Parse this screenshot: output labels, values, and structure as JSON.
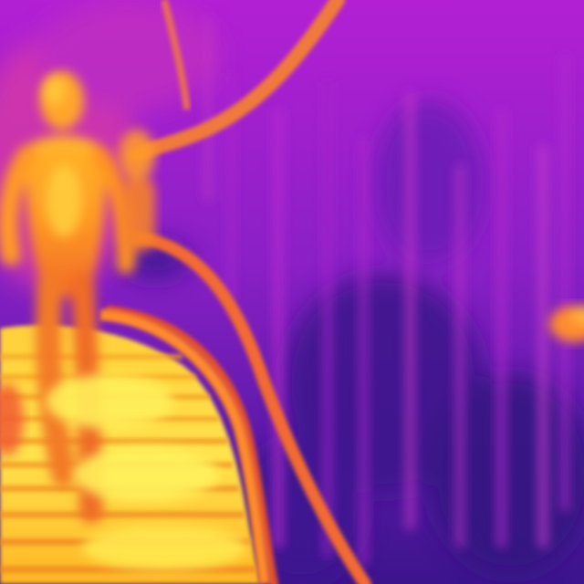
{
  "image": {
    "kind": "thermal-infrared-photo",
    "palette": "ironbow",
    "scene": "person-standing-on-suspension-footbridge-among-trees",
    "colors": {
      "hot": "#fff25a",
      "warm": "#ffb021",
      "mid": "#f0602e",
      "cool": "#b21ed0",
      "cold": "#3a1488"
    },
    "text_visible": ""
  }
}
